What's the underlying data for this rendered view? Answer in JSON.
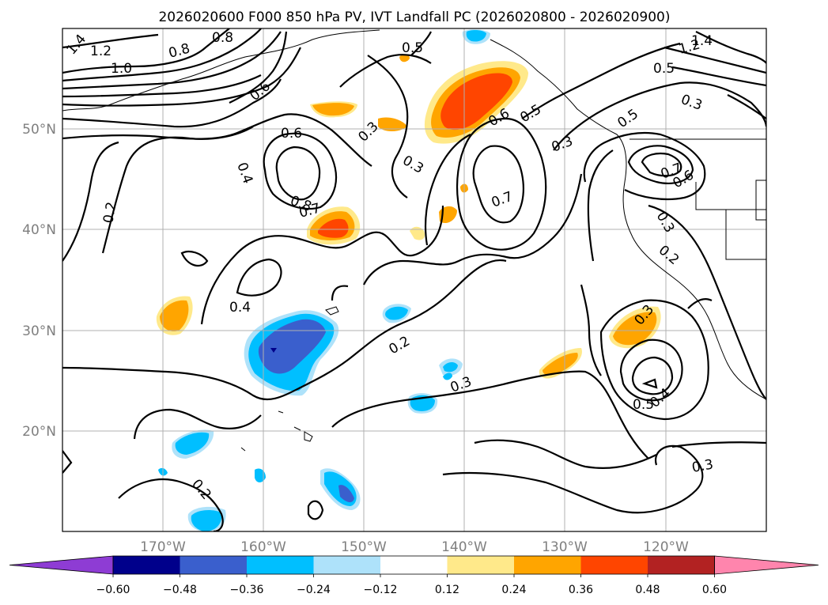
{
  "title": "2026020600 F000 850 hPa PV, IVT Landfall PC (2026020800 - 2026020900)",
  "lat_labels": [
    "50°N",
    "40°N",
    "30°N",
    "20°N"
  ],
  "lon_labels": [
    "170°W",
    "160°W",
    "150°W",
    "140°W",
    "130°W",
    "120°W"
  ],
  "colorbar": {
    "ticks": [
      "−0.60",
      "−0.48",
      "−0.36",
      "−0.24",
      "−0.12",
      "0.12",
      "0.24",
      "0.36",
      "0.48",
      "0.60"
    ],
    "colors": [
      "#8e3cd4",
      "#00008b",
      "#3a5fcd",
      "#00bfff",
      "#aee2fa",
      "#ffffff",
      "#ffe98a",
      "#ffa500",
      "#ff4500",
      "#b22222",
      "#ff85ad",
      "#ff85ad"
    ]
  },
  "contour_labels": [
    "1.4",
    "1.2",
    "1.0",
    "0.8",
    "0.8",
    "0.5",
    "0.6",
    "0.6",
    "0.3",
    "0.3",
    "0.4",
    "0.8",
    "0.7",
    "0.2",
    "0.6",
    "0.5",
    "0.3",
    "0.7",
    "1.4",
    "1.2",
    "0.5",
    "0.3",
    "0.5",
    "0.7",
    "0.6",
    "0.3",
    "0.2",
    "0.4",
    "0.2",
    "0.3",
    "0.3",
    "0.5",
    "0.4",
    "0.3",
    "0.2"
  ]
}
